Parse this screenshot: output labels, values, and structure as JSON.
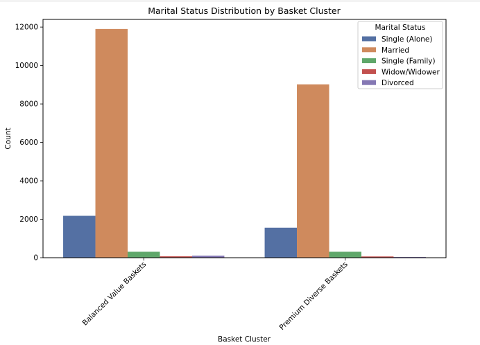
{
  "chart_data": {
    "type": "bar",
    "title": "Marital Status Distribution by Basket Cluster",
    "xlabel": "Basket Cluster",
    "ylabel": "Count",
    "categories": [
      "Balanced Value Baskets",
      "Premium Diverse Baskets"
    ],
    "ylim": [
      0,
      12400
    ],
    "yticks": [
      "0",
      "2000",
      "4000",
      "6000",
      "8000",
      "10000",
      "12000"
    ],
    "ytick_values": [
      0,
      2000,
      4000,
      6000,
      8000,
      10000,
      12000
    ],
    "legend": {
      "title": "Marital Status",
      "placement": "top-right"
    },
    "grid": false,
    "series": [
      {
        "name": "Single (Alone)",
        "color": "#5470a3",
        "values": [
          2180,
          1560
        ]
      },
      {
        "name": "Married",
        "color": "#cf8a5d",
        "values": [
          11900,
          9020
        ]
      },
      {
        "name": "Single (Family)",
        "color": "#5fa76a",
        "values": [
          310,
          310
        ]
      },
      {
        "name": "Widow/Widower",
        "color": "#c2504e",
        "values": [
          75,
          65
        ]
      },
      {
        "name": "Divorced",
        "color": "#8477b3",
        "values": [
          110,
          35
        ]
      }
    ]
  }
}
